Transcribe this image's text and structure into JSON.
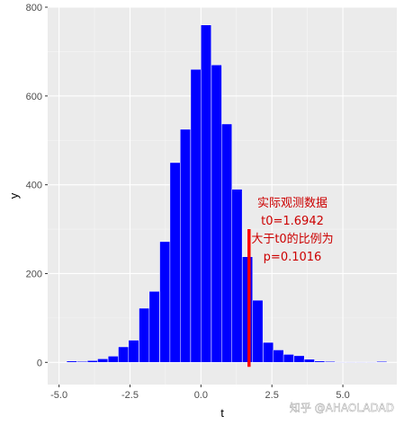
{
  "chart_data": {
    "type": "bar",
    "subtype": "histogram",
    "xlabel": "t",
    "ylabel": "y",
    "xlim": [
      -5.4,
      6.9
    ],
    "ylim": [
      -50,
      800
    ],
    "x_ticks": [
      -5.0,
      -2.5,
      0.0,
      2.5,
      5.0
    ],
    "x_tick_labels": [
      "-5.0",
      "-2.5",
      "0.0",
      "2.5",
      "5.0"
    ],
    "y_ticks": [
      0,
      200,
      400,
      600,
      800
    ],
    "y_tick_labels": [
      "0",
      "200",
      "400",
      "600",
      "800"
    ],
    "grid": true,
    "bar_color": "#0000ff",
    "bar_border_color": "#ffffff",
    "panel_background": "#ebebeb",
    "bin_width": 0.364,
    "bins": [
      {
        "center": -4.55,
        "count": 3
      },
      {
        "center": -4.18,
        "count": 2
      },
      {
        "center": -3.82,
        "count": 4
      },
      {
        "center": -3.46,
        "count": 8
      },
      {
        "center": -3.09,
        "count": 14
      },
      {
        "center": -2.73,
        "count": 35
      },
      {
        "center": -2.37,
        "count": 50
      },
      {
        "center": -2.0,
        "count": 122
      },
      {
        "center": -1.64,
        "count": 160
      },
      {
        "center": -1.27,
        "count": 272
      },
      {
        "center": -0.91,
        "count": 450
      },
      {
        "center": -0.55,
        "count": 525
      },
      {
        "center": -0.18,
        "count": 660
      },
      {
        "center": 0.18,
        "count": 760
      },
      {
        "center": 0.55,
        "count": 670
      },
      {
        "center": 0.91,
        "count": 537
      },
      {
        "center": 1.27,
        "count": 390
      },
      {
        "center": 1.64,
        "count": 238
      },
      {
        "center": 2.0,
        "count": 140
      },
      {
        "center": 2.37,
        "count": 45
      },
      {
        "center": 2.73,
        "count": 28
      },
      {
        "center": 3.09,
        "count": 18
      },
      {
        "center": 3.46,
        "count": 15
      },
      {
        "center": 3.82,
        "count": 7
      },
      {
        "center": 4.18,
        "count": 3
      },
      {
        "center": 4.55,
        "count": 2
      },
      {
        "center": 4.91,
        "count": 1
      },
      {
        "center": 5.28,
        "count": 1
      },
      {
        "center": 5.64,
        "count": 1
      },
      {
        "center": 6.01,
        "count": 1
      },
      {
        "center": 6.37,
        "count": 2
      }
    ],
    "reference_line": {
      "x": 1.6942,
      "y_from": -10,
      "y_to": 300,
      "color": "#ff0000"
    },
    "annotation": {
      "lines": [
        "实际观测数据",
        "t0=1.6942",
        "大于t0的比例为",
        "p=0.1016"
      ],
      "color": "#cc0000"
    }
  },
  "watermark": "知乎 @AHAOLADAD"
}
